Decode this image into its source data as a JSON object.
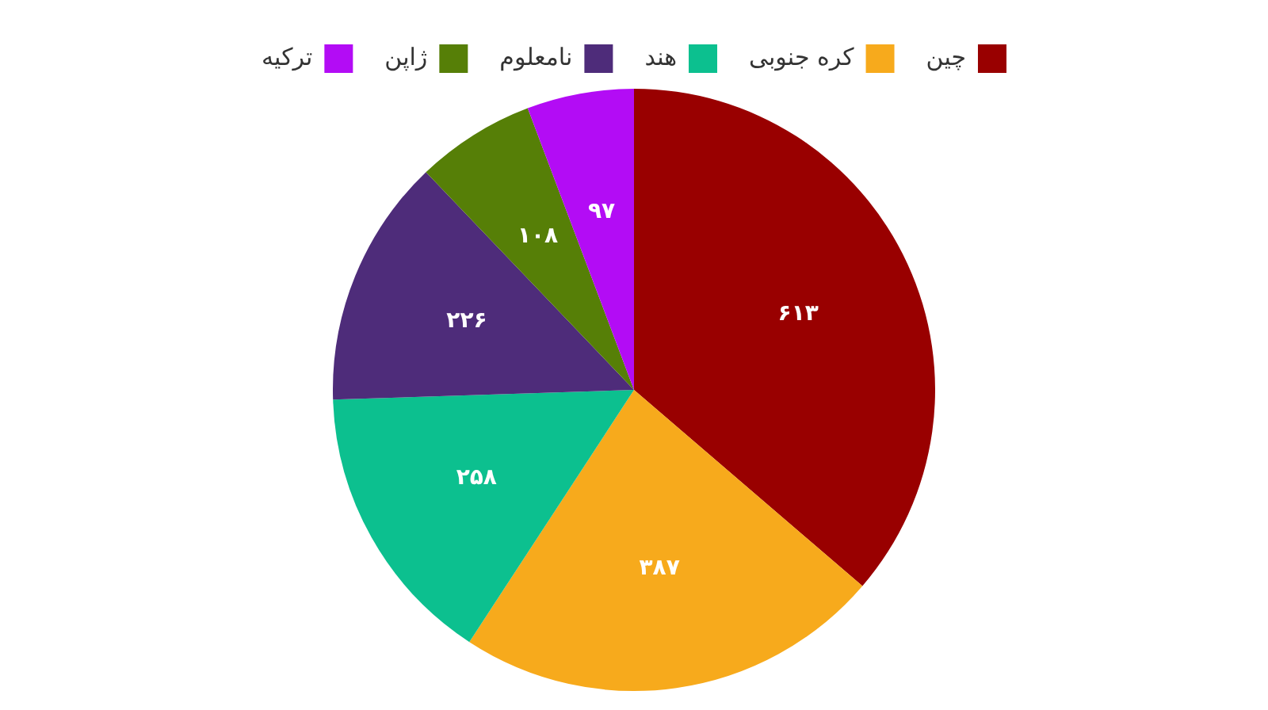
{
  "chart_data": {
    "type": "pie",
    "categories": [
      "چین",
      "کره جنوبی",
      "هند",
      "نامعلوم",
      "ژاپن",
      "ترکیه"
    ],
    "values": [
      613,
      387,
      258,
      226,
      108,
      97
    ],
    "colors": [
      "#990000",
      "#f7aa1c",
      "#0cc08f",
      "#4e2c7a",
      "#567f07",
      "#b30cf5"
    ],
    "value_labels": [
      "۶۱۳",
      "۳۸۷",
      "۲۵۸",
      "۲۲۶",
      "۱۰۸",
      "۹۷"
    ],
    "legend": "top"
  }
}
